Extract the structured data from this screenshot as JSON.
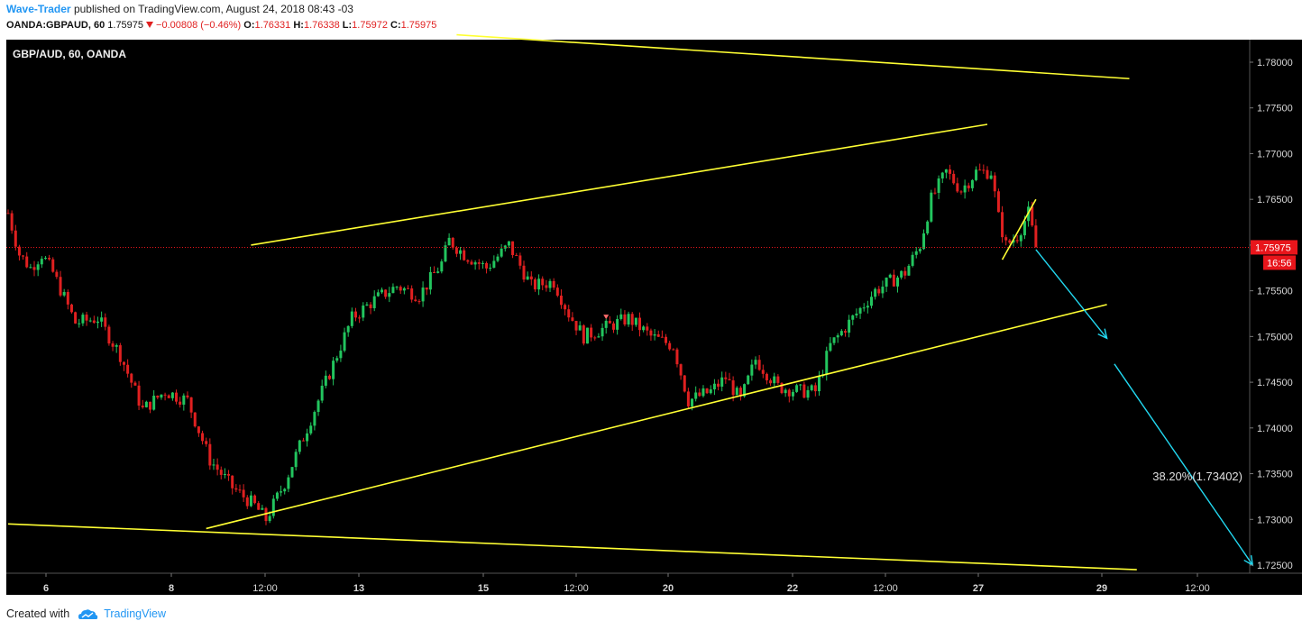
{
  "header": {
    "author": "Wave-Trader",
    "publish_text": "published on TradingView.com, August 24, 2018 08:43 -03",
    "symbol": "OANDA:GBPAUD, 60",
    "last": "1.75975",
    "change": "−0.00808 (−0.46%)",
    "o_label": "O:",
    "o_val": "1.76331",
    "h_label": "H:",
    "h_val": "1.76338",
    "l_label": "L:",
    "l_val": "1.75972",
    "c_label": "C:",
    "c_val": "1.75975"
  },
  "footer": {
    "created_with": "Created with",
    "brand": "TradingView"
  },
  "colors": {
    "background": "#000000",
    "up": "#22c55e",
    "down": "#e02020",
    "trendline": "#ffff33",
    "arrow": "#22d8f0",
    "axis_text": "#d8d8d8",
    "price_tag": "#e8151b"
  },
  "chart_data": {
    "type": "candlestick",
    "title": "GBP/AUD, 60, OANDA",
    "x_tick_labels": [
      "6",
      "8",
      "12:00",
      "13",
      "15",
      "12:00",
      "20",
      "22",
      "12:00",
      "27",
      "29",
      "12:00"
    ],
    "y_tick_labels": [
      "1.78000",
      "1.77500",
      "1.77000",
      "1.76500",
      "1.76000",
      "1.75500",
      "1.75000",
      "1.74500",
      "1.74000",
      "1.73500",
      "1.73000",
      "1.72500"
    ],
    "ylim": [
      1.7238,
      1.7822
    ],
    "price_path": [
      [
        0,
        1.7635
      ],
      [
        3,
        1.759
      ],
      [
        6,
        1.7575
      ],
      [
        9,
        1.759
      ],
      [
        12,
        1.757
      ],
      [
        18,
        1.7515
      ],
      [
        24,
        1.752
      ],
      [
        30,
        1.748
      ],
      [
        36,
        1.742
      ],
      [
        42,
        1.744
      ],
      [
        48,
        1.743
      ],
      [
        54,
        1.7365
      ],
      [
        60,
        1.7335
      ],
      [
        66,
        1.7315
      ],
      [
        69,
        1.73
      ],
      [
        74,
        1.734
      ],
      [
        80,
        1.74
      ],
      [
        86,
        1.746
      ],
      [
        92,
        1.752
      ],
      [
        98,
        1.754
      ],
      [
        104,
        1.7555
      ],
      [
        110,
        1.7545
      ],
      [
        116,
        1.758
      ],
      [
        118,
        1.7605
      ],
      [
        122,
        1.759
      ],
      [
        128,
        1.7575
      ],
      [
        134,
        1.76
      ],
      [
        140,
        1.7555
      ],
      [
        146,
        1.756
      ],
      [
        150,
        1.7525
      ],
      [
        154,
        1.75
      ],
      [
        160,
        1.751
      ],
      [
        166,
        1.752
      ],
      [
        172,
        1.75
      ],
      [
        178,
        1.749
      ],
      [
        182,
        1.743
      ],
      [
        188,
        1.744
      ],
      [
        192,
        1.7455
      ],
      [
        196,
        1.743
      ],
      [
        200,
        1.7475
      ],
      [
        206,
        1.7445
      ],
      [
        212,
        1.744
      ],
      [
        216,
        1.744
      ],
      [
        220,
        1.749
      ],
      [
        226,
        1.752
      ],
      [
        232,
        1.755
      ],
      [
        236,
        1.756
      ],
      [
        240,
        1.757
      ],
      [
        244,
        1.76
      ],
      [
        247,
        1.765
      ],
      [
        251,
        1.768
      ],
      [
        255,
        1.766
      ],
      [
        259,
        1.768
      ],
      [
        263,
        1.768
      ],
      [
        265,
        1.763
      ],
      [
        267,
        1.76
      ],
      [
        270,
        1.761
      ],
      [
        273,
        1.7635
      ],
      [
        275,
        1.7598
      ]
    ],
    "last_price": "1.75975",
    "countdown": "16:56",
    "annotation": "38.20%(1.73402)",
    "down_arrow_marker": {
      "bar": 160,
      "price": 1.752
    },
    "trendlines": [
      {
        "from": [
          120,
          1.783
        ],
        "to": [
          300,
          1.7782
        ]
      },
      {
        "from": [
          65,
          1.76
        ],
        "to": [
          262,
          1.7732
        ]
      },
      {
        "from": [
          53,
          1.729
        ],
        "to": [
          294,
          1.7535
        ]
      },
      {
        "from": [
          0,
          1.7295
        ],
        "to": [
          302,
          1.7245
        ]
      },
      {
        "from": [
          266,
          1.7584
        ],
        "to": [
          275,
          1.765
        ]
      }
    ],
    "forecast_arrows": [
      {
        "from": [
          275,
          1.7595
        ],
        "to": [
          294,
          1.7498
        ]
      },
      {
        "from": [
          296,
          1.747
        ],
        "to": [
          333,
          1.725
        ]
      }
    ]
  }
}
